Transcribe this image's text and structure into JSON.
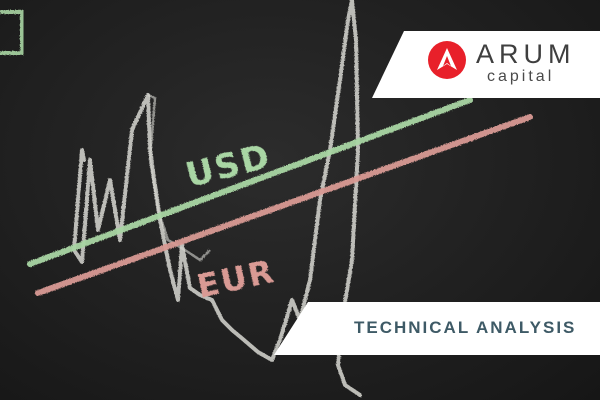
{
  "brand": {
    "name": "ARUM",
    "tagline": "capital",
    "accent_color": "#e8202a",
    "text_color": "#3f3f3f"
  },
  "banner": {
    "title": "TECHNICAL ANALYSIS",
    "text_color": "#3e5a66"
  },
  "chalkboard": {
    "usd_label": "USD",
    "eur_label": "EUR",
    "usd_color": "#a9d6a4",
    "eur_color": "#d99a94",
    "chalk_color": "#d8d8d2"
  }
}
